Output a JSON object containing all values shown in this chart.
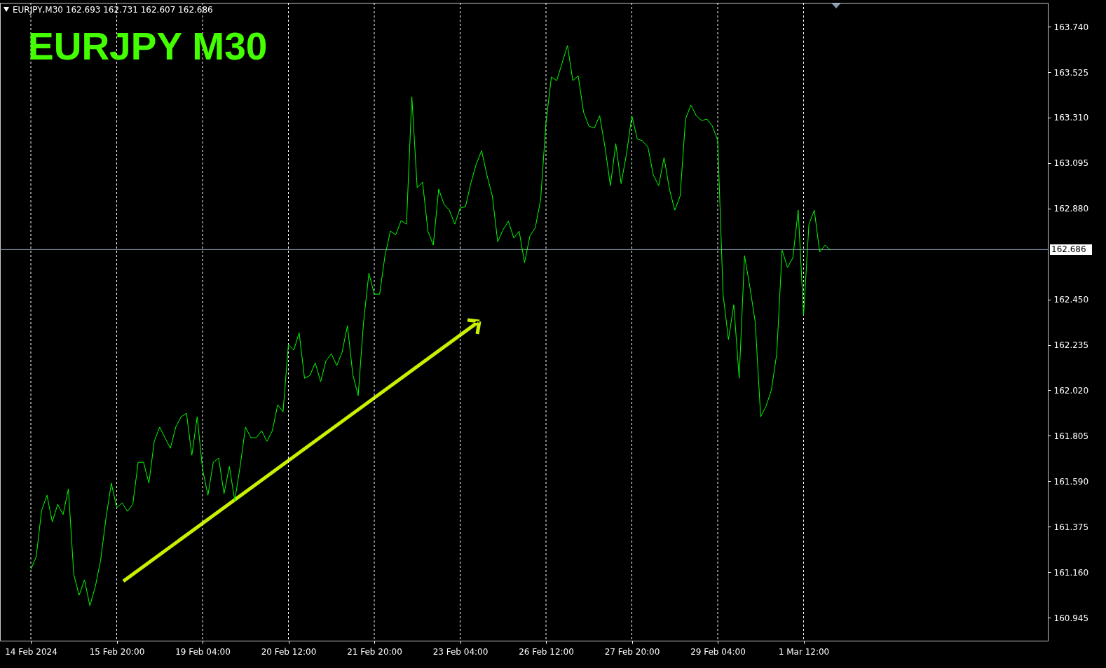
{
  "chart_data": {
    "type": "line",
    "title": "EURJPY  M30",
    "annotations": [
      "EURJPY,M30  162.693 162.731 162.607 162.686"
    ],
    "grid": "x",
    "categories": [
      "14 Feb 2024",
      null,
      null,
      null,
      null,
      null,
      null,
      null,
      null,
      null,
      null,
      null,
      null,
      null,
      null,
      null,
      "15 Feb 20:00",
      null,
      null,
      null,
      null,
      null,
      null,
      null,
      null,
      null,
      null,
      null,
      null,
      null,
      null,
      null,
      "19 Feb 04:00",
      null,
      null,
      null,
      null,
      null,
      null,
      null,
      null,
      null,
      null,
      null,
      null,
      null,
      null,
      null,
      "20 Feb 12:00",
      null,
      null,
      null,
      null,
      null,
      null,
      null,
      null,
      null,
      null,
      null,
      null,
      null,
      null,
      null,
      "21 Feb 20:00",
      null,
      null,
      null,
      null,
      null,
      null,
      null,
      null,
      null,
      null,
      null,
      null,
      null,
      null,
      null,
      "23 Feb 04:00",
      null,
      null,
      null,
      null,
      null,
      null,
      null,
      null,
      null,
      null,
      null,
      null,
      null,
      null,
      null,
      "26 Feb 12:00",
      null,
      null,
      null,
      null,
      null,
      null,
      null,
      null,
      null,
      null,
      null,
      null,
      null,
      null,
      null,
      "27 Feb 20:00",
      null,
      null,
      null,
      null,
      null,
      null,
      null,
      null,
      null,
      null,
      null,
      null,
      null,
      null,
      null,
      "29 Feb 04:00",
      null,
      null,
      null,
      null,
      null,
      null,
      null,
      null,
      null,
      null,
      null,
      null,
      null,
      null,
      null,
      "1 Mar 12:00",
      null,
      null,
      null,
      null,
      null
    ],
    "ylim": [
      160.836,
      163.853
    ],
    "yticks": [
      {
        "value": 160.945,
        "label": "160.945"
      },
      {
        "value": 161.16,
        "label": "161.160"
      },
      {
        "value": 161.375,
        "label": "161.375"
      },
      {
        "value": 161.59,
        "label": "161.590"
      },
      {
        "value": 161.805,
        "label": "161.805"
      },
      {
        "value": 162.02,
        "label": "162.020"
      },
      {
        "value": 162.235,
        "label": "162.235"
      },
      {
        "value": 162.45,
        "label": "162.450"
      },
      {
        "value": 162.88,
        "label": "162.880"
      },
      {
        "value": 163.095,
        "label": "163.095"
      },
      {
        "value": 163.31,
        "label": "163.310"
      },
      {
        "value": 163.525,
        "label": "163.525"
      },
      {
        "value": 163.74,
        "label": "163.740"
      }
    ],
    "ref_lines": [
      {
        "axis": "y",
        "value": 162.686,
        "label": "162.686",
        "color": "#8a9bb0"
      }
    ],
    "series": [
      {
        "color": "#00ff00",
        "values": [
          161.173,
          161.233,
          161.451,
          161.524,
          161.398,
          161.481,
          161.432,
          161.554,
          161.15,
          161.051,
          161.124,
          161.001,
          161.09,
          161.216,
          161.415,
          161.581,
          161.465,
          161.488,
          161.448,
          161.481,
          161.68,
          161.68,
          161.581,
          161.779,
          161.846,
          161.796,
          161.746,
          161.846,
          161.895,
          161.912,
          161.713,
          161.895,
          161.647,
          161.524,
          161.68,
          161.7,
          161.531,
          161.66,
          161.498,
          161.66,
          161.846,
          161.796,
          161.796,
          161.829,
          161.779,
          161.829,
          161.952,
          161.918,
          162.236,
          162.21,
          162.293,
          162.077,
          162.09,
          162.15,
          162.061,
          162.16,
          162.193,
          162.137,
          162.2,
          162.326,
          162.094,
          161.995,
          162.342,
          162.574,
          162.475,
          162.475,
          162.657,
          162.773,
          162.756,
          162.823,
          162.806,
          163.409,
          162.978,
          163.005,
          162.773,
          162.707,
          162.972,
          162.9,
          162.872,
          162.806,
          162.882,
          162.889,
          163.0,
          163.09,
          163.154,
          163.038,
          162.939,
          162.723,
          162.78,
          162.82,
          162.74,
          162.773,
          162.624,
          162.75,
          162.789,
          162.922,
          163.286,
          163.502,
          163.485,
          163.568,
          163.651,
          163.485,
          163.508,
          163.336,
          163.27,
          163.26,
          163.319,
          163.17,
          162.988,
          163.187,
          162.998,
          163.137,
          163.319,
          163.21,
          163.2,
          163.17,
          163.038,
          162.988,
          163.121,
          162.972,
          162.872,
          162.939,
          163.303,
          163.369,
          163.319,
          163.296,
          163.303,
          163.27,
          163.203,
          162.475,
          162.26,
          162.425,
          162.077,
          162.657,
          162.508,
          162.342,
          161.895,
          161.945,
          162.021,
          162.193,
          162.683,
          162.601,
          162.647,
          162.872,
          162.375,
          162.806,
          162.872,
          162.674,
          162.707,
          162.683
        ]
      }
    ]
  }
}
